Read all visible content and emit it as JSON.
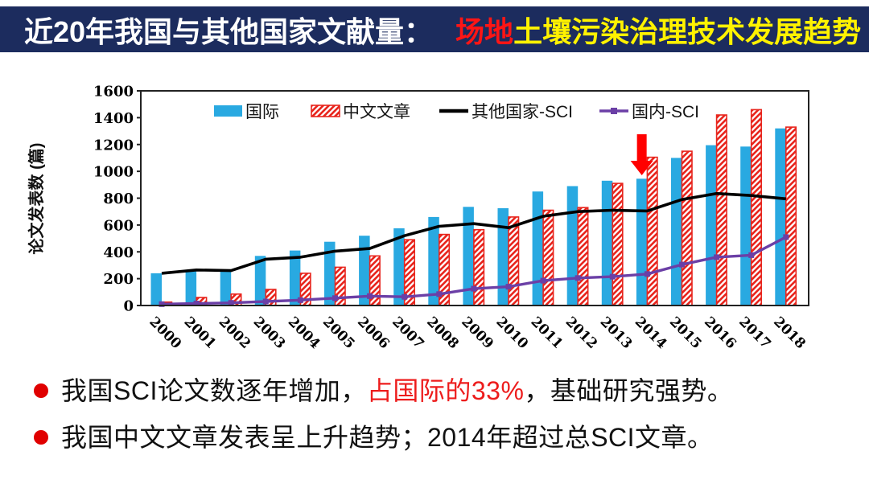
{
  "title": {
    "part1": "近20年我国与其他国家文献量：",
    "part2": "场地",
    "part3": "土壤污染治理技术发展趋势"
  },
  "colors": {
    "title_bar_bg": "#1C2C5E",
    "title_part1": "#FFFFFF",
    "title_part2": "#FF1515",
    "title_part3": "#FFF200",
    "bullet_dot": "#E00000",
    "chart_frame": "#222222",
    "annotation_arrow": "#FF0000"
  },
  "chart_data": {
    "type": "combo-bar-line",
    "title": "",
    "xlabel": "",
    "ylabel": "论文发表数 (篇)",
    "ylim": [
      0,
      1600
    ],
    "ytick_step": 200,
    "grid": false,
    "legend_position": "top-inside",
    "categories": [
      "2000",
      "2001",
      "2002",
      "2003",
      "2004",
      "2005",
      "2006",
      "2007",
      "2008",
      "2009",
      "2010",
      "2011",
      "2012",
      "2013",
      "2014",
      "2015",
      "2016",
      "2017",
      "2018"
    ],
    "series": [
      {
        "name": "国际",
        "type": "bar",
        "style": "solid",
        "color": "#29A9E1",
        "values": [
          240,
          260,
          255,
          370,
          410,
          475,
          520,
          575,
          660,
          735,
          725,
          850,
          890,
          930,
          945,
          1100,
          1195,
          1185,
          1320
        ]
      },
      {
        "name": "中文文章",
        "type": "bar",
        "style": "hatched",
        "color": "#E8251D",
        "values": [
          25,
          60,
          85,
          120,
          240,
          285,
          370,
          490,
          530,
          565,
          660,
          710,
          730,
          910,
          1105,
          1150,
          1420,
          1460,
          1330
        ]
      },
      {
        "name": "其他国家-SCI",
        "type": "line",
        "style": "solid",
        "color": "#000000",
        "values": [
          240,
          265,
          260,
          345,
          360,
          405,
          425,
          520,
          590,
          610,
          580,
          665,
          700,
          710,
          705,
          790,
          835,
          820,
          795
        ]
      },
      {
        "name": "国内-SCI",
        "type": "line",
        "style": "solid",
        "marker": "square",
        "color": "#6B3FA6",
        "values": [
          10,
          15,
          20,
          30,
          40,
          55,
          70,
          65,
          85,
          125,
          140,
          185,
          205,
          215,
          235,
          305,
          360,
          375,
          510
        ]
      }
    ],
    "annotation": {
      "type": "down-arrow",
      "category": "2014",
      "color": "#FF0000"
    }
  },
  "bullets": [
    {
      "segments": [
        {
          "text": "我国SCI论文数逐年增加，",
          "color": "#111111"
        },
        {
          "text": "占国际的33%",
          "color": "#ED1C1C"
        },
        {
          "text": "，基础研究强势。",
          "color": "#111111"
        }
      ]
    },
    {
      "segments": [
        {
          "text": "我国中文文章发表呈上升趋势；2014年超过总SCI文章。",
          "color": "#111111"
        }
      ]
    }
  ]
}
